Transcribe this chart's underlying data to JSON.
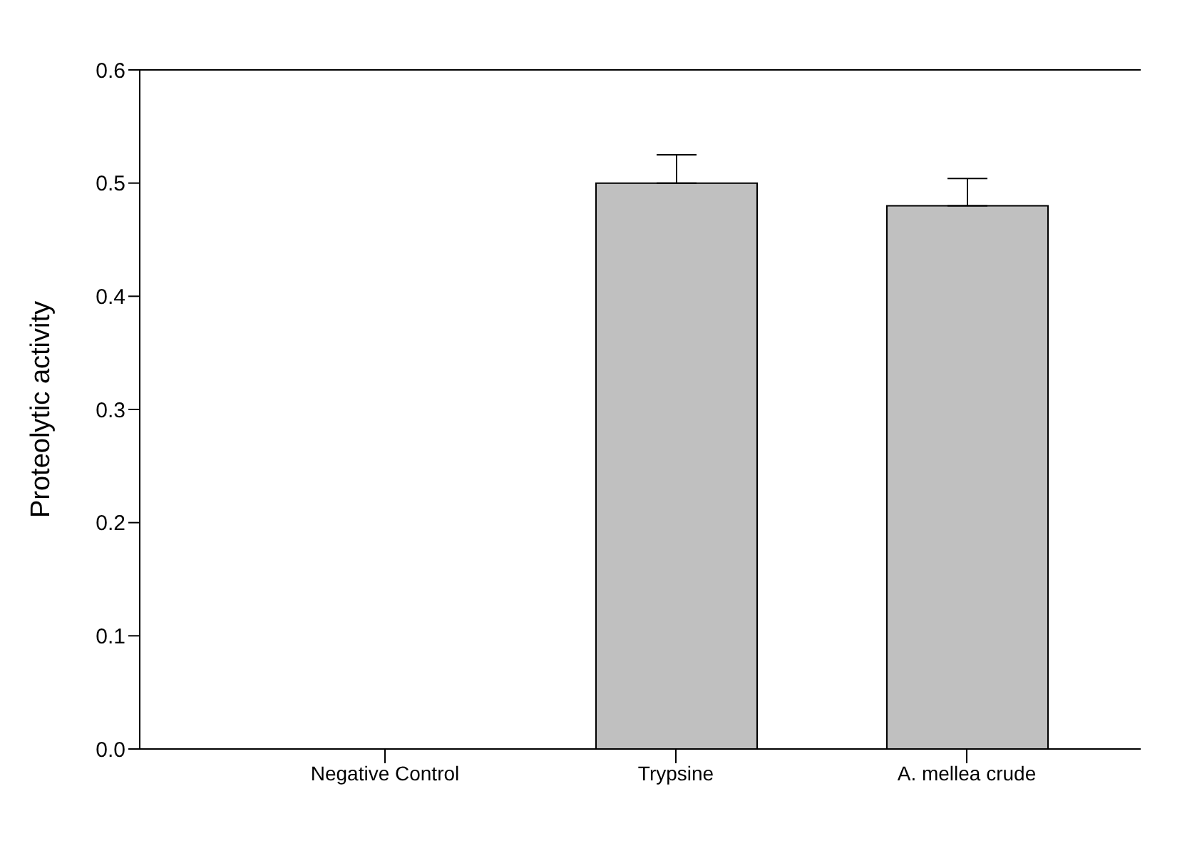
{
  "chart_data": {
    "type": "bar",
    "ylabel": "Proteolytic activity",
    "categories": [
      "Negative Control",
      "Trypsine",
      "A. mellea crude"
    ],
    "values": [
      0,
      0.5,
      0.48
    ],
    "errors": [
      null,
      [
        0.5,
        0.525
      ],
      [
        0.48,
        0.504
      ]
    ],
    "color": "#c0c0c0",
    "ylim": [
      0,
      0.6
    ],
    "yticks": [
      {
        "value": 0,
        "label": "0.0"
      },
      {
        "value": 0.1,
        "label": "0.1"
      },
      {
        "value": 0.2,
        "label": "0.2"
      },
      {
        "value": 0.3,
        "label": "0.3"
      },
      {
        "value": 0.4,
        "label": "0.4"
      },
      {
        "value": 0.5,
        "label": "0.5"
      },
      {
        "value": 0.6,
        "label": "0.6"
      }
    ]
  }
}
